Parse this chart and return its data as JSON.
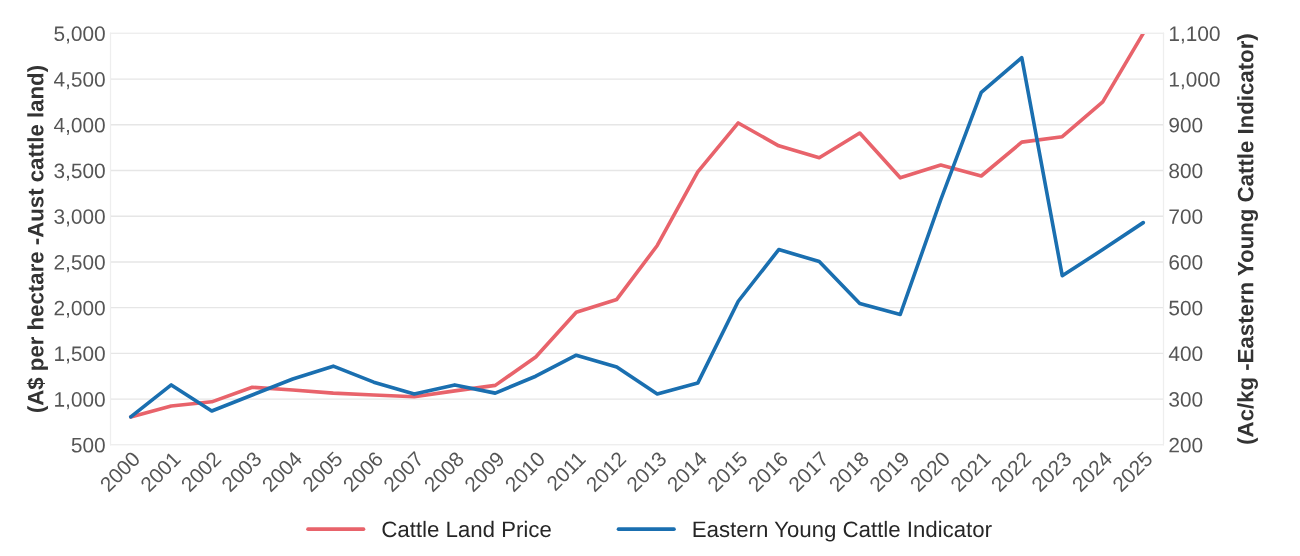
{
  "chart_data": {
    "type": "line",
    "categories": [
      "2000",
      "2001",
      "2002",
      "2003",
      "2004",
      "2005",
      "2006",
      "2007",
      "2008",
      "2009",
      "2010",
      "2011",
      "2012",
      "2013",
      "2014",
      "2015",
      "2016",
      "2017",
      "2018",
      "2019",
      "2020",
      "2021",
      "2022",
      "2023",
      "2024",
      "2025"
    ],
    "series": [
      {
        "name": "Cattle Land Price",
        "color": "#e8636b",
        "values": [
          805,
          925,
          970,
          1130,
          1100,
          1065,
          1045,
          1025,
          1090,
          1150,
          1460,
          1950,
          2090,
          2680,
          3485,
          4020,
          3770,
          3640,
          3910,
          3420,
          3560,
          3440,
          3810,
          3870,
          4250,
          5000
        ]
      },
      {
        "name": "Eastern Young Cattle Indicator",
        "color": "#1a6fb0",
        "axis": "y2",
        "values": [
          261,
          331,
          274,
          309,
          344,
          372,
          337,
          311,
          331,
          313,
          350,
          396,
          370,
          311,
          335,
          514,
          627,
          601,
          509,
          485,
          736,
          971,
          1047,
          570,
          627,
          686
        ]
      }
    ],
    "ylabel": "(A$ per hectare -Aust cattle land)",
    "y2label": "(Ac/kg -Eastern Young Cattle Indicator)",
    "ylim": [
      500,
      5000
    ],
    "yticks": [
      500,
      {
        "value": 1000,
        "label": "1,000"
      },
      {
        "value": 1500,
        "label": "1,500"
      },
      {
        "value": 2000,
        "label": "2,000"
      },
      {
        "value": 2500,
        "label": "2,500"
      },
      {
        "value": 3000,
        "label": "3,000"
      },
      {
        "value": 3500,
        "label": "3,500"
      },
      {
        "value": 4000,
        "label": "4,000"
      },
      {
        "value": 4500,
        "label": "4,500"
      },
      {
        "value": 5000,
        "label": "5,000"
      }
    ],
    "y2lim": [
      200,
      1100
    ],
    "y2ticks": [
      200,
      300,
      400,
      500,
      600,
      700,
      800,
      900,
      {
        "value": 1000,
        "label": "1,000"
      },
      {
        "value": 1100,
        "label": "1,100"
      }
    ],
    "grid": "y",
    "legend": "bottom",
    "marker": "none",
    "line_style": "solid"
  }
}
